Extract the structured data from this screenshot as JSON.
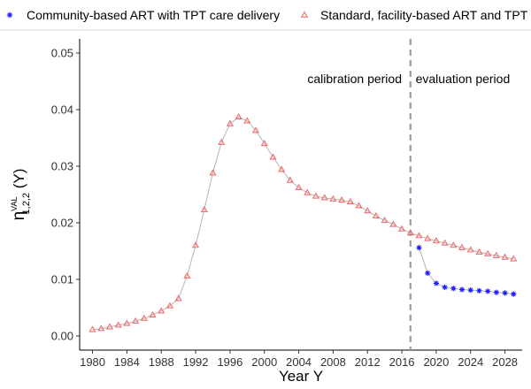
{
  "chart_data": {
    "type": "line",
    "xlabel": "Year Y",
    "ylabel": {
      "symbol": "η",
      "superscript": "VAL",
      "subscript": "1,2,2",
      "suffix": " (Y)"
    },
    "xlim": [
      1978.5,
      2030
    ],
    "ylim": [
      -0.0025,
      0.0525
    ],
    "x_ticks": [
      1980,
      1984,
      1988,
      1992,
      1996,
      2000,
      2004,
      2008,
      2012,
      2016,
      2020,
      2024,
      2028
    ],
    "y_ticks": [
      0.0,
      0.01,
      0.02,
      0.03,
      0.04,
      0.05
    ],
    "y_tick_labels": [
      "0.00",
      "0.01",
      "0.02",
      "0.03",
      "0.04",
      "0.05"
    ],
    "grid": false,
    "legend_position": "top",
    "vline": {
      "x": 2017,
      "style": "dashed",
      "color": "#9e9e9e"
    },
    "annotations": [
      {
        "text": "calibration period",
        "x": 2010.5,
        "y": 0.0447,
        "anchor": "middle"
      },
      {
        "text": "evaluation period",
        "x": 2017.6,
        "y": 0.0447,
        "anchor": "start"
      }
    ],
    "series": [
      {
        "name": "Community-based ART with TPT care delivery",
        "color": "#1a1aff",
        "marker": "star",
        "x": [
          2018,
          2019,
          2020,
          2021,
          2022,
          2023,
          2024,
          2025,
          2026,
          2027,
          2028,
          2029
        ],
        "y": [
          0.0156,
          0.0111,
          0.0093,
          0.0086,
          0.0084,
          0.0082,
          0.0081,
          0.008,
          0.0079,
          0.0077,
          0.0076,
          0.0074
        ]
      },
      {
        "name": "Standard, facility-based ART and TPT",
        "color": "#f26c6c",
        "marker": "triangle",
        "x": [
          1980,
          1981,
          1982,
          1983,
          1984,
          1985,
          1986,
          1987,
          1988,
          1989,
          1990,
          1991,
          1992,
          1993,
          1994,
          1995,
          1996,
          1997,
          1998,
          1999,
          2000,
          2001,
          2002,
          2003,
          2004,
          2005,
          2006,
          2007,
          2008,
          2009,
          2010,
          2011,
          2012,
          2013,
          2014,
          2015,
          2016,
          2017,
          2018,
          2019,
          2020,
          2021,
          2022,
          2023,
          2024,
          2025,
          2026,
          2027,
          2028,
          2029
        ],
        "y": [
          0.0011,
          0.0013,
          0.0016,
          0.0019,
          0.0022,
          0.0026,
          0.0031,
          0.0037,
          0.0044,
          0.0053,
          0.0066,
          0.0106,
          0.016,
          0.0223,
          0.0288,
          0.0342,
          0.0375,
          0.0387,
          0.038,
          0.0363,
          0.034,
          0.0316,
          0.0294,
          0.0275,
          0.0262,
          0.0253,
          0.0247,
          0.0244,
          0.0242,
          0.024,
          0.0237,
          0.023,
          0.0221,
          0.0212,
          0.0204,
          0.0197,
          0.0189,
          0.0182,
          0.0177,
          0.0172,
          0.0168,
          0.0164,
          0.016,
          0.0156,
          0.0152,
          0.0148,
          0.0145,
          0.0142,
          0.0139,
          0.0136
        ]
      }
    ]
  }
}
